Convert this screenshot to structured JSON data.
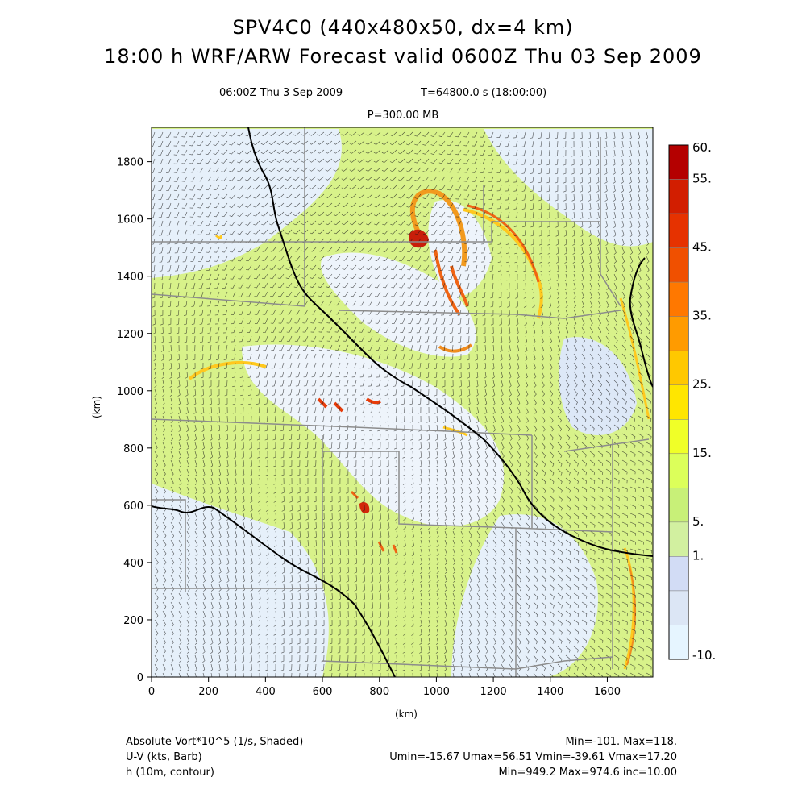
{
  "header": {
    "title_line1": "SPV4C0 (440x480x50, dx=4 km)",
    "title_line2": "18:00 h WRF/ARW Forecast valid 0600Z Thu 03 Sep 2009",
    "valid_time": "06:00Z Thu  3 Sep 2009",
    "model_time": "T=64800.0 s (18:00:00)",
    "pressure_level": "P=300.00 MB"
  },
  "axes": {
    "x_ticks": [
      "0",
      "200",
      "400",
      "600",
      "800",
      "1000",
      "1200",
      "1400",
      "1600"
    ],
    "y_ticks": [
      "0",
      "200",
      "400",
      "600",
      "800",
      "1000",
      "1200",
      "1400",
      "1600",
      "1800"
    ],
    "x_label": "(km)",
    "y_label": "(km)",
    "x_range": [
      0,
      1760
    ],
    "y_range": [
      0,
      1920
    ]
  },
  "colorbar": {
    "labels": [
      "60.",
      "55.",
      "45.",
      "35.",
      "25.",
      "15.",
      "5.",
      "1.",
      "-10."
    ],
    "colors": [
      "#b40000",
      "#d21e00",
      "#e63200",
      "#f05000",
      "#ff7800",
      "#ff9b00",
      "#ffc800",
      "#ffe600",
      "#f0ff28",
      "#dcff5a",
      "#c8f078",
      "#d2f0a0",
      "#d2dcf5",
      "#dce6f5",
      "#e6f5ff"
    ]
  },
  "footer": {
    "field1": "Absolute Vort*10^5 (1/s, Shaded)",
    "field2": "U-V (kts, Barb)",
    "field3": "h (10m, contour)",
    "stats1": "Min=-101. Max=118.",
    "stats2": "Umin=-15.67 Umax=56.51 Vmin=-39.61 Vmax=17.20",
    "stats3": "Min=949.2 Max=974.6 inc=10.00"
  },
  "colors": {
    "background_green": "#d8f28a",
    "background_light": "#e8f2fb",
    "vort_high": "#e14a14",
    "state_border": "#8c8c8c",
    "country_border": "#000000"
  }
}
